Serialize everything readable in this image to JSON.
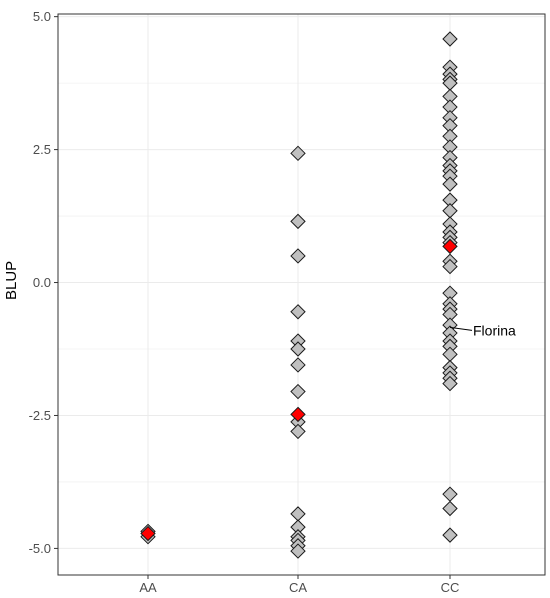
{
  "chart_data": {
    "type": "scatter",
    "ylabel": "BLUP",
    "xlabel": "",
    "categories": [
      "AA",
      "CA",
      "CC"
    ],
    "yticks": [
      5.0,
      2.5,
      0.0,
      -2.5,
      -5.0
    ],
    "ytick_labels": [
      "5.0",
      "2.5",
      "0.0",
      "-2.5",
      "-5.0"
    ],
    "ylim": [
      -5.5,
      5.05
    ],
    "grid": true,
    "colors": {
      "point_fill": "#c0c0c0",
      "highlight_fill": "#ff0000",
      "point_stroke": "#1a1a1a",
      "grid": "#ebebeb"
    },
    "points": [
      {
        "x": "AA",
        "y": -4.68,
        "highlight": false
      },
      {
        "x": "AA",
        "y": -4.78,
        "highlight": false
      },
      {
        "x": "AA",
        "y": -4.72,
        "highlight": true
      },
      {
        "x": "CA",
        "y": 2.43,
        "highlight": false
      },
      {
        "x": "CA",
        "y": 1.15,
        "highlight": false
      },
      {
        "x": "CA",
        "y": 0.5,
        "highlight": false
      },
      {
        "x": "CA",
        "y": -0.55,
        "highlight": false
      },
      {
        "x": "CA",
        "y": -1.1,
        "highlight": false
      },
      {
        "x": "CA",
        "y": -1.25,
        "highlight": false
      },
      {
        "x": "CA",
        "y": -1.55,
        "highlight": false
      },
      {
        "x": "CA",
        "y": -2.05,
        "highlight": false
      },
      {
        "x": "CA",
        "y": -2.62,
        "highlight": false
      },
      {
        "x": "CA",
        "y": -2.8,
        "highlight": false
      },
      {
        "x": "CA",
        "y": -2.48,
        "highlight": true
      },
      {
        "x": "CA",
        "y": -4.35,
        "highlight": false
      },
      {
        "x": "CA",
        "y": -4.6,
        "highlight": false
      },
      {
        "x": "CA",
        "y": -4.78,
        "highlight": false
      },
      {
        "x": "CA",
        "y": -4.85,
        "highlight": false
      },
      {
        "x": "CA",
        "y": -4.95,
        "highlight": false
      },
      {
        "x": "CA",
        "y": -5.05,
        "highlight": false
      },
      {
        "x": "CC",
        "y": 4.58,
        "highlight": false
      },
      {
        "x": "CC",
        "y": 4.05,
        "highlight": false
      },
      {
        "x": "CC",
        "y": 3.92,
        "highlight": false
      },
      {
        "x": "CC",
        "y": 3.82,
        "highlight": false
      },
      {
        "x": "CC",
        "y": 3.75,
        "highlight": false
      },
      {
        "x": "CC",
        "y": 3.5,
        "highlight": false
      },
      {
        "x": "CC",
        "y": 3.3,
        "highlight": false
      },
      {
        "x": "CC",
        "y": 3.1,
        "highlight": false
      },
      {
        "x": "CC",
        "y": 2.95,
        "highlight": false
      },
      {
        "x": "CC",
        "y": 2.75,
        "highlight": false
      },
      {
        "x": "CC",
        "y": 2.55,
        "highlight": false
      },
      {
        "x": "CC",
        "y": 2.35,
        "highlight": false
      },
      {
        "x": "CC",
        "y": 2.2,
        "highlight": false
      },
      {
        "x": "CC",
        "y": 2.1,
        "highlight": false
      },
      {
        "x": "CC",
        "y": 2.0,
        "highlight": false
      },
      {
        "x": "CC",
        "y": 1.85,
        "highlight": false
      },
      {
        "x": "CC",
        "y": 1.55,
        "highlight": false
      },
      {
        "x": "CC",
        "y": 1.35,
        "highlight": false
      },
      {
        "x": "CC",
        "y": 1.1,
        "highlight": false
      },
      {
        "x": "CC",
        "y": 0.95,
        "highlight": false
      },
      {
        "x": "CC",
        "y": 0.85,
        "highlight": false
      },
      {
        "x": "CC",
        "y": 0.75,
        "highlight": false
      },
      {
        "x": "CC",
        "y": 0.4,
        "highlight": false
      },
      {
        "x": "CC",
        "y": 0.3,
        "highlight": false
      },
      {
        "x": "CC",
        "y": -0.2,
        "highlight": false
      },
      {
        "x": "CC",
        "y": -0.4,
        "highlight": false
      },
      {
        "x": "CC",
        "y": -0.5,
        "highlight": false
      },
      {
        "x": "CC",
        "y": -0.6,
        "highlight": false
      },
      {
        "x": "CC",
        "y": -0.8,
        "highlight": false
      },
      {
        "x": "CC",
        "y": -0.95,
        "highlight": false
      },
      {
        "x": "CC",
        "y": -1.1,
        "highlight": false
      },
      {
        "x": "CC",
        "y": -1.2,
        "highlight": false
      },
      {
        "x": "CC",
        "y": -1.35,
        "highlight": false
      },
      {
        "x": "CC",
        "y": -1.6,
        "highlight": false
      },
      {
        "x": "CC",
        "y": -1.7,
        "highlight": false
      },
      {
        "x": "CC",
        "y": -1.8,
        "highlight": false
      },
      {
        "x": "CC",
        "y": -1.9,
        "highlight": false
      },
      {
        "x": "CC",
        "y": -3.98,
        "highlight": false
      },
      {
        "x": "CC",
        "y": -4.25,
        "highlight": false
      },
      {
        "x": "CC",
        "y": -4.75,
        "highlight": false
      },
      {
        "x": "CC",
        "y": 0.68,
        "highlight": true
      }
    ],
    "annotations": [
      {
        "text": "Florina",
        "x": "CC",
        "y": -0.9
      }
    ]
  }
}
